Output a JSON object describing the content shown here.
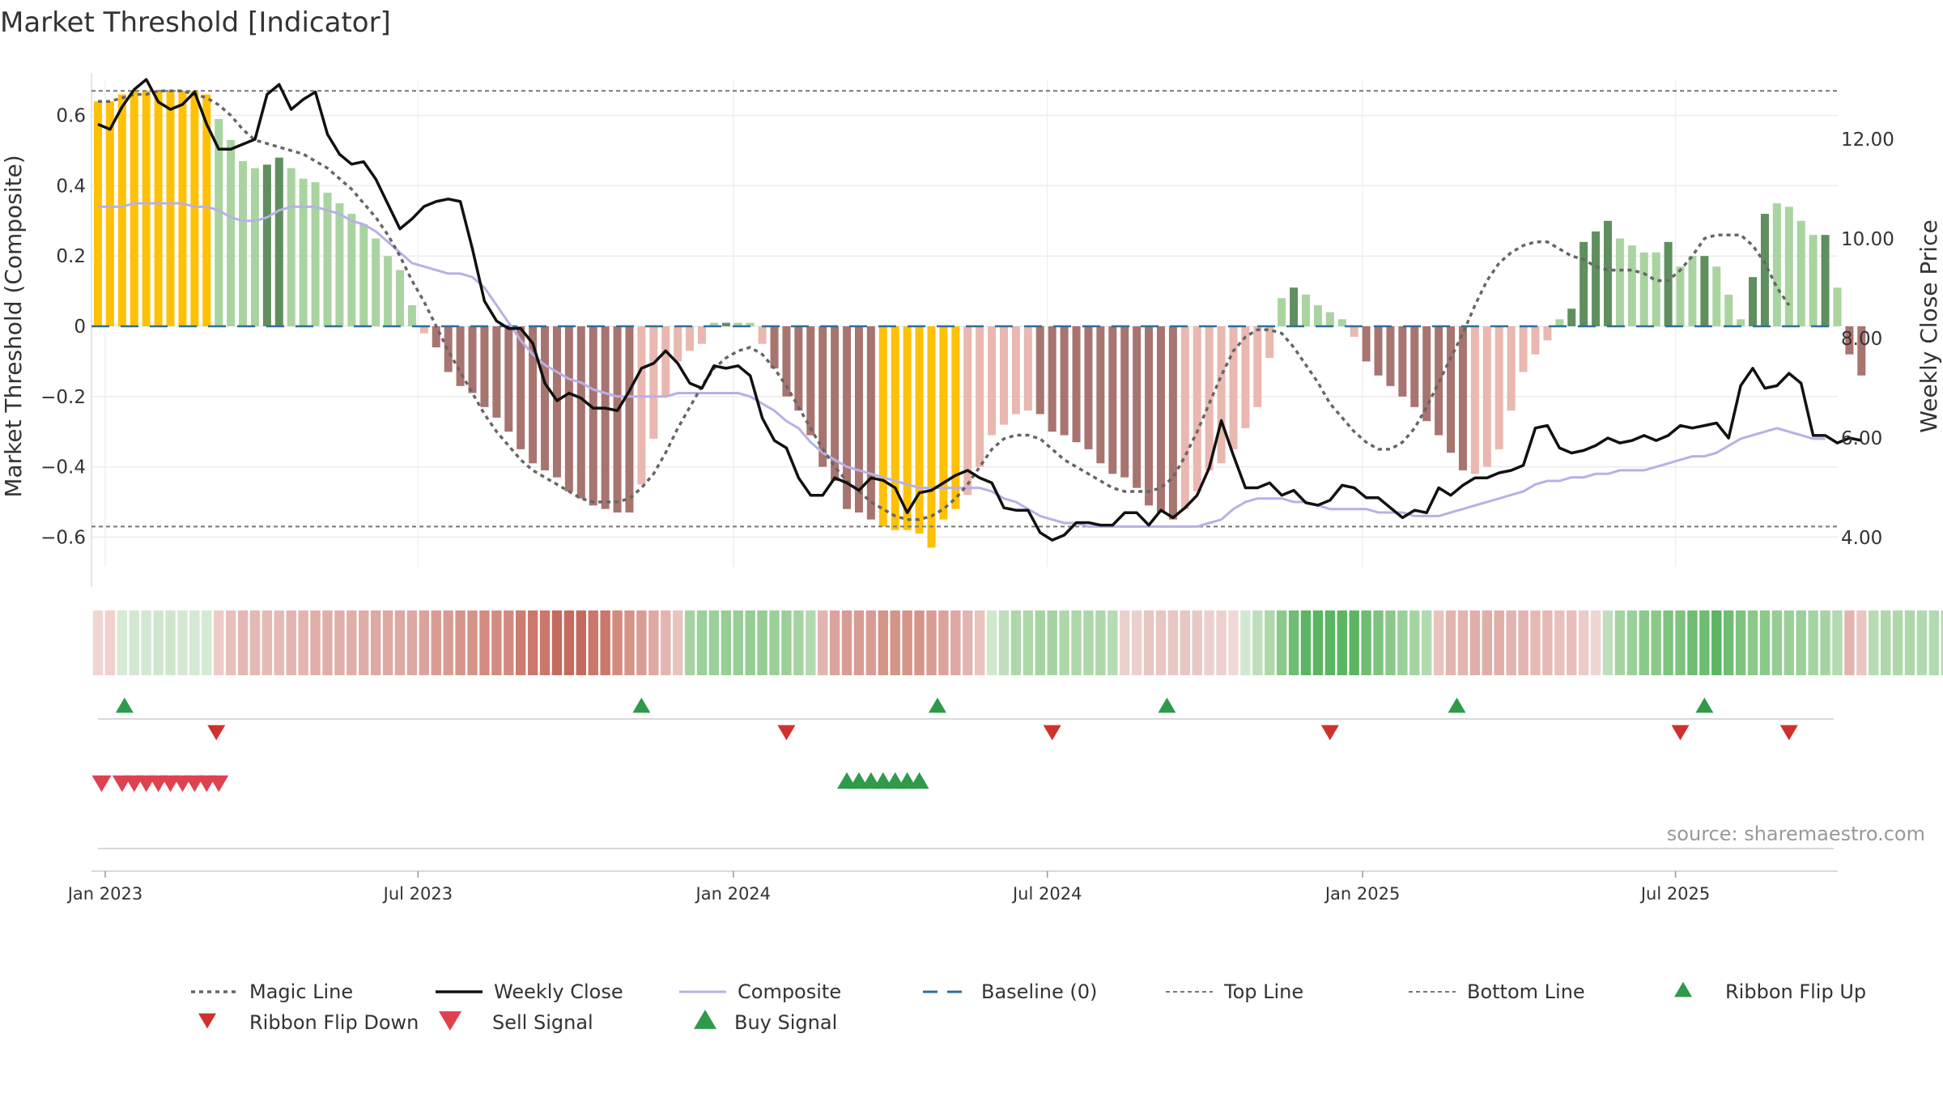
{
  "title": "Market Threshold [Indicator]",
  "source_text": "source: sharemaestro.com",
  "colors": {
    "magic_line": "#666666",
    "weekly_close": "#111111",
    "composite": "#b9b0e6",
    "baseline": "#2f6f99",
    "top_bottom": "#777777",
    "buy_up": "#2e9a4a",
    "sell_down": "#d0312d",
    "sell_signal": "#e04050",
    "bar_extreme": "#ffc107",
    "bar_dark_green": "#5f8f5f",
    "bar_light_green": "#a9d4a0",
    "bar_dark_red": "#a87470",
    "bar_light_red": "#e9b8b0"
  },
  "legend": [
    {
      "label": "Magic Line",
      "kind": "dotted"
    },
    {
      "label": "Weekly Close",
      "kind": "solid"
    },
    {
      "label": "Composite",
      "kind": "composite"
    },
    {
      "label": "Baseline (0)",
      "kind": "dashed"
    },
    {
      "label": "Top Line",
      "kind": "thin-dashed"
    },
    {
      "label": "Bottom Line",
      "kind": "thin-dashed"
    },
    {
      "label": "Ribbon Flip Up",
      "kind": "tri-up-small"
    },
    {
      "label": "Ribbon Flip Down",
      "kind": "tri-down-small"
    },
    {
      "label": "Sell Signal",
      "kind": "tri-down-big"
    },
    {
      "label": "Buy Signal",
      "kind": "tri-up-big"
    }
  ],
  "chart_data": {
    "type": "bar",
    "title": "Market Threshold [Indicator]",
    "ylabel": "Market Threshold (Composite)",
    "ylabel_right": "Weekly Close Price",
    "ylim": [
      -0.74,
      0.74
    ],
    "ylim_right": [
      3.0,
      13.0
    ],
    "yticks": [
      0.6,
      0.4,
      0.2,
      0,
      -0.2,
      -0.4,
      -0.6
    ],
    "ytick_labels": [
      "0.6",
      "0.4",
      "0.2",
      "0",
      "−0.2",
      "−0.4",
      "−0.6"
    ],
    "yticks_right": [
      12.0,
      10.0,
      8.0,
      6.0,
      4.0
    ],
    "ytick_labels_right": [
      "12.00",
      "10.00",
      "8.00",
      "6.00",
      "4.00"
    ],
    "xticks": [
      {
        "label": "Jan 2023",
        "week": 0.6
      },
      {
        "label": "Jul 2023",
        "week": 26.5
      },
      {
        "label": "Jan 2024",
        "week": 52.6
      },
      {
        "label": "Jul 2024",
        "week": 78.6
      },
      {
        "label": "Jan 2025",
        "week": 104.7
      },
      {
        "label": "Jul 2025",
        "week": 130.6
      }
    ],
    "top_line": 0.67,
    "bottom_line": -0.57,
    "composite_bars": [
      0.64,
      0.64,
      0.66,
      0.67,
      0.67,
      0.67,
      0.67,
      0.67,
      0.67,
      0.66,
      0.59,
      0.53,
      0.47,
      0.45,
      0.46,
      0.48,
      0.45,
      0.42,
      0.41,
      0.38,
      0.35,
      0.32,
      0.29,
      0.25,
      0.2,
      0.16,
      0.06,
      -0.02,
      -0.06,
      -0.13,
      -0.17,
      -0.19,
      -0.23,
      -0.26,
      -0.3,
      -0.35,
      -0.39,
      -0.41,
      -0.43,
      -0.47,
      -0.49,
      -0.51,
      -0.52,
      -0.53,
      -0.53,
      -0.45,
      -0.32,
      -0.2,
      -0.1,
      -0.07,
      -0.05,
      0.01,
      0.01,
      0.01,
      0.01,
      -0.05,
      -0.12,
      -0.2,
      -0.24,
      -0.31,
      -0.4,
      -0.44,
      -0.52,
      -0.53,
      -0.55,
      -0.57,
      -0.58,
      -0.58,
      -0.59,
      -0.63,
      -0.55,
      -0.52,
      -0.48,
      -0.4,
      -0.31,
      -0.28,
      -0.25,
      -0.24,
      -0.25,
      -0.3,
      -0.31,
      -0.33,
      -0.35,
      -0.39,
      -0.42,
      -0.43,
      -0.46,
      -0.51,
      -0.53,
      -0.55,
      -0.52,
      -0.47,
      -0.41,
      -0.39,
      -0.35,
      -0.29,
      -0.23,
      -0.09,
      0.08,
      0.11,
      0.09,
      0.06,
      0.04,
      0.02,
      -0.03,
      -0.1,
      -0.14,
      -0.17,
      -0.2,
      -0.23,
      -0.27,
      -0.31,
      -0.36,
      -0.41,
      -0.42,
      -0.4,
      -0.35,
      -0.24,
      -0.13,
      -0.08,
      -0.04,
      0.02,
      0.05,
      0.24,
      0.27,
      0.3,
      0.25,
      0.23,
      0.21,
      0.21,
      0.24,
      0.17,
      0.2,
      0.2,
      0.17,
      0.09,
      0.02,
      0.14,
      0.32,
      0.35,
      0.34,
      0.3,
      0.26,
      0.26,
      0.11,
      -0.08,
      -0.14
    ],
    "bar_categories": [
      "Y",
      "Y",
      "Y",
      "Y",
      "Y",
      "Y",
      "Y",
      "Y",
      "Y",
      "Y",
      "LG",
      "LG",
      "LG",
      "LG",
      "DG",
      "DG",
      "LG",
      "LG",
      "LG",
      "LG",
      "LG",
      "LG",
      "LG",
      "LG",
      "LG",
      "LG",
      "LG",
      "LR",
      "DR",
      "DR",
      "DR",
      "DR",
      "DR",
      "DR",
      "DR",
      "DR",
      "DR",
      "DR",
      "DR",
      "DR",
      "DR",
      "DR",
      "DR",
      "DR",
      "DR",
      "LR",
      "LR",
      "LR",
      "LR",
      "LR",
      "LR",
      "LG",
      "DG",
      "LG",
      "LG",
      "LR",
      "DR",
      "DR",
      "DR",
      "DR",
      "DR",
      "DR",
      "DR",
      "DR",
      "DR",
      "Y",
      "Y",
      "Y",
      "Y",
      "Y",
      "Y",
      "Y",
      "LR",
      "LR",
      "LR",
      "LR",
      "LR",
      "LR",
      "DR",
      "DR",
      "DR",
      "DR",
      "DR",
      "DR",
      "DR",
      "DR",
      "DR",
      "DR",
      "DR",
      "DR",
      "LR",
      "LR",
      "LR",
      "LR",
      "LR",
      "LR",
      "LR",
      "LR",
      "LG",
      "DG",
      "LG",
      "LG",
      "LG",
      "LG",
      "LR",
      "DR",
      "DR",
      "DR",
      "DR",
      "DR",
      "DR",
      "DR",
      "DR",
      "DR",
      "LR",
      "LR",
      "LR",
      "LR",
      "LR",
      "LR",
      "LR",
      "LG",
      "DG",
      "DG",
      "DG",
      "DG",
      "LG",
      "LG",
      "LG",
      "LG",
      "DG",
      "LG",
      "LG",
      "DG",
      "LG",
      "LG",
      "LG",
      "DG",
      "DG",
      "LG",
      "LG",
      "LG",
      "LG",
      "DG",
      "LG",
      "DR",
      "DR"
    ],
    "composite_line": [
      0.34,
      0.34,
      0.34,
      0.35,
      0.35,
      0.35,
      0.35,
      0.35,
      0.34,
      0.34,
      0.33,
      0.31,
      0.3,
      0.3,
      0.31,
      0.33,
      0.34,
      0.34,
      0.34,
      0.33,
      0.32,
      0.3,
      0.29,
      0.27,
      0.24,
      0.21,
      0.18,
      0.17,
      0.16,
      0.15,
      0.15,
      0.14,
      0.11,
      0.06,
      0.01,
      -0.04,
      -0.08,
      -0.11,
      -0.13,
      -0.15,
      -0.16,
      -0.18,
      -0.19,
      -0.2,
      -0.2,
      -0.2,
      -0.2,
      -0.2,
      -0.19,
      -0.19,
      -0.19,
      -0.19,
      -0.19,
      -0.19,
      -0.2,
      -0.22,
      -0.24,
      -0.27,
      -0.29,
      -0.33,
      -0.36,
      -0.38,
      -0.4,
      -0.41,
      -0.42,
      -0.43,
      -0.44,
      -0.45,
      -0.46,
      -0.46,
      -0.46,
      -0.46,
      -0.46,
      -0.46,
      -0.47,
      -0.49,
      -0.5,
      -0.52,
      -0.54,
      -0.55,
      -0.56,
      -0.56,
      -0.57,
      -0.57,
      -0.57,
      -0.57,
      -0.57,
      -0.57,
      -0.57,
      -0.57,
      -0.57,
      -0.57,
      -0.56,
      -0.55,
      -0.52,
      -0.5,
      -0.49,
      -0.49,
      -0.49,
      -0.5,
      -0.5,
      -0.51,
      -0.52,
      -0.52,
      -0.52,
      -0.52,
      -0.53,
      -0.53,
      -0.53,
      -0.54,
      -0.54,
      -0.54,
      -0.53,
      -0.52,
      -0.51,
      -0.5,
      -0.49,
      -0.48,
      -0.47,
      -0.45,
      -0.44,
      -0.44,
      -0.43,
      -0.43,
      -0.42,
      -0.42,
      -0.41,
      -0.41,
      -0.41,
      -0.4,
      -0.39,
      -0.38,
      -0.37,
      -0.37,
      -0.36,
      -0.34,
      -0.32,
      -0.31,
      -0.3,
      -0.29,
      -0.3,
      -0.31,
      -0.32,
      -0.32
    ],
    "magic_line": [
      0.64,
      0.64,
      0.65,
      0.66,
      0.66,
      0.67,
      0.67,
      0.67,
      0.66,
      0.65,
      0.63,
      0.6,
      0.56,
      0.53,
      0.52,
      0.51,
      0.5,
      0.49,
      0.47,
      0.45,
      0.42,
      0.39,
      0.35,
      0.31,
      0.26,
      0.2,
      0.13,
      0.07,
      0.0,
      -0.07,
      -0.13,
      -0.19,
      -0.25,
      -0.3,
      -0.34,
      -0.38,
      -0.41,
      -0.43,
      -0.45,
      -0.47,
      -0.49,
      -0.5,
      -0.5,
      -0.5,
      -0.49,
      -0.46,
      -0.42,
      -0.36,
      -0.29,
      -0.23,
      -0.17,
      -0.12,
      -0.09,
      -0.07,
      -0.06,
      -0.08,
      -0.12,
      -0.17,
      -0.23,
      -0.29,
      -0.35,
      -0.4,
      -0.44,
      -0.47,
      -0.5,
      -0.52,
      -0.54,
      -0.55,
      -0.55,
      -0.54,
      -0.52,
      -0.49,
      -0.45,
      -0.4,
      -0.35,
      -0.32,
      -0.31,
      -0.31,
      -0.32,
      -0.35,
      -0.38,
      -0.4,
      -0.42,
      -0.44,
      -0.46,
      -0.47,
      -0.47,
      -0.47,
      -0.46,
      -0.43,
      -0.37,
      -0.3,
      -0.22,
      -0.14,
      -0.07,
      -0.03,
      -0.01,
      -0.01,
      -0.02,
      -0.06,
      -0.11,
      -0.16,
      -0.22,
      -0.26,
      -0.3,
      -0.33,
      -0.35,
      -0.35,
      -0.33,
      -0.29,
      -0.23,
      -0.16,
      -0.09,
      -0.02,
      0.06,
      0.13,
      0.18,
      0.21,
      0.23,
      0.24,
      0.24,
      0.22,
      0.2,
      0.19,
      0.17,
      0.16,
      0.16,
      0.16,
      0.15,
      0.13,
      0.13,
      0.16,
      0.2,
      0.25,
      0.26,
      0.26,
      0.26,
      0.23,
      0.18,
      0.11,
      0.06
    ],
    "weekly_close": [
      12.3,
      12.2,
      12.65,
      13.0,
      13.2,
      12.75,
      12.6,
      12.7,
      12.95,
      12.3,
      11.8,
      11.8,
      11.9,
      12.0,
      12.9,
      13.1,
      12.6,
      12.8,
      12.95,
      12.1,
      11.7,
      11.5,
      11.55,
      11.2,
      10.7,
      10.2,
      10.4,
      10.65,
      10.75,
      10.8,
      10.75,
      9.8,
      8.75,
      8.35,
      8.2,
      8.2,
      7.9,
      7.1,
      6.75,
      6.9,
      6.8,
      6.6,
      6.6,
      6.55,
      6.95,
      7.4,
      7.5,
      7.75,
      7.5,
      7.1,
      7.0,
      7.45,
      7.4,
      7.45,
      7.25,
      6.4,
      5.95,
      5.8,
      5.2,
      4.85,
      4.85,
      5.2,
      5.1,
      4.95,
      5.2,
      5.15,
      5.0,
      4.5,
      4.9,
      4.95,
      5.1,
      5.25,
      5.35,
      5.2,
      5.1,
      4.6,
      4.55,
      4.55,
      4.1,
      3.95,
      4.05,
      4.3,
      4.3,
      4.25,
      4.25,
      4.5,
      4.5,
      4.25,
      4.55,
      4.4,
      4.6,
      4.85,
      5.4,
      6.35,
      5.65,
      5.0,
      5.0,
      5.1,
      4.85,
      4.95,
      4.7,
      4.65,
      4.75,
      5.05,
      5.0,
      4.8,
      4.8,
      4.6,
      4.4,
      4.55,
      4.5,
      5.0,
      4.85,
      5.05,
      5.2,
      5.2,
      5.3,
      5.35,
      5.45,
      6.2,
      6.25,
      5.8,
      5.7,
      5.75,
      5.85,
      6.0,
      5.9,
      5.95,
      6.05,
      5.95,
      6.05,
      6.25,
      6.2,
      6.25,
      6.3,
      6.0,
      7.05,
      7.4,
      7.0,
      7.05,
      7.3,
      7.1,
      6.05,
      6.05,
      5.9,
      6.0,
      5.95
    ],
    "ribbon_colors": [
      "#f0d5d3",
      "#f2d0cc",
      "#d8ead6",
      "#d2e8d0",
      "#d2e8d0",
      "#cfe6cc",
      "#cfe6cc",
      "#d3e9d1",
      "#d3e9d1",
      "#d5ead3",
      "#eccbc8",
      "#e8c0bb",
      "#e4b8b3",
      "#e4b8b3",
      "#e5bab5",
      "#e5bab5",
      "#e3b5b0",
      "#e3b5b0",
      "#e0aea8",
      "#e0aea8",
      "#e0aea8",
      "#e0aea8",
      "#e0aea8",
      "#dea9a3",
      "#dea9a3",
      "#dea9a3",
      "#dea9a3",
      "#dca39c",
      "#d99c95",
      "#d99c95",
      "#d69489",
      "#d69489",
      "#d38b80",
      "#d38b80",
      "#d38b80",
      "#cd7c71",
      "#cb776c",
      "#cb776c",
      "#c56a5f",
      "#c56a5f",
      "#c56a5f",
      "#cb776c",
      "#cb776c",
      "#d38b80",
      "#d69489",
      "#d99c95",
      "#dea9a3",
      "#e3b5b0",
      "#e9c3be",
      "#a5d4a2",
      "#9bd09a",
      "#9bd09a",
      "#98ce96",
      "#98ce96",
      "#95cd93",
      "#95cd93",
      "#9ad098",
      "#9ad098",
      "#a5d4a2",
      "#b2dab0",
      "#e3b5b0",
      "#dca39c",
      "#d99c95",
      "#d99c95",
      "#d99c95",
      "#d69489",
      "#d69489",
      "#d69489",
      "#d69489",
      "#d99c95",
      "#dca39c",
      "#dea9a3",
      "#e3b5b0",
      "#e9c3be",
      "#d0e8cc",
      "#bfdfbc",
      "#aed8aa",
      "#aed8aa",
      "#a5d4a2",
      "#a5d4a2",
      "#aed8aa",
      "#aed8aa",
      "#aed8aa",
      "#aed8aa",
      "#b6dcb3",
      "#ecd0cd",
      "#ecd0cd",
      "#e8c6c2",
      "#e8c6c2",
      "#e8c6c2",
      "#e8c6c2",
      "#e9c9c5",
      "#ecd0cd",
      "#ecd0cd",
      "#efd9d6",
      "#d2e8d0",
      "#bfdfbc",
      "#aed8aa",
      "#8bc98a",
      "#6ebd72",
      "#5cb562",
      "#5cb562",
      "#5cb562",
      "#5cb562",
      "#5cb562",
      "#6ebd72",
      "#7ec47f",
      "#8bc98a",
      "#9bd09a",
      "#a5d4a2",
      "#b2dab0",
      "#e9c3be",
      "#e3b5b0",
      "#e3b5b0",
      "#e0aea8",
      "#e0aea8",
      "#e0aea8",
      "#e3b5b0",
      "#e3b5b0",
      "#e5bab5",
      "#e5bab5",
      "#e8c0bb",
      "#e8c0bb",
      "#eccbc8",
      "#efd6d3",
      "#bfdfbc",
      "#a5d4a2",
      "#9bd09a",
      "#8bc98a",
      "#8bc98a",
      "#7ec47f",
      "#7ec47f",
      "#6ebd72",
      "#6ebd72",
      "#5cb562",
      "#6ebd72",
      "#7ec47f",
      "#8bc98a",
      "#8bc98a",
      "#95cd93",
      "#9bd09a",
      "#9bd09a",
      "#a5d4a2",
      "#a5d4a2",
      "#b2dab0",
      "#e3b5b0",
      "#e8c6c2",
      "#b6dcb3",
      "#aed8aa",
      "#aed8aa",
      "#aed8aa",
      "#b2dab0",
      "#b2dab0",
      "#b6dcb3",
      "#dea9a3",
      "#dca39c",
      "#dea9a3"
    ],
    "ribbon_flip_up_weeks": [
      2.2,
      45.0,
      69.5,
      88.5,
      112.5,
      133.0
    ],
    "ribbon_flip_down_weeks": [
      9.8,
      57.0,
      79.0,
      102.0,
      131.0,
      140.0
    ],
    "sell_signal_weeks": [
      0.3,
      2.0,
      3.0,
      4.0,
      5.0,
      6.0,
      7.0,
      8.0,
      9.0,
      10.0
    ],
    "buy_signal_weeks": [
      62.0,
      63.0,
      64.0,
      65.0,
      66.0,
      67.0,
      68.0
    ]
  }
}
